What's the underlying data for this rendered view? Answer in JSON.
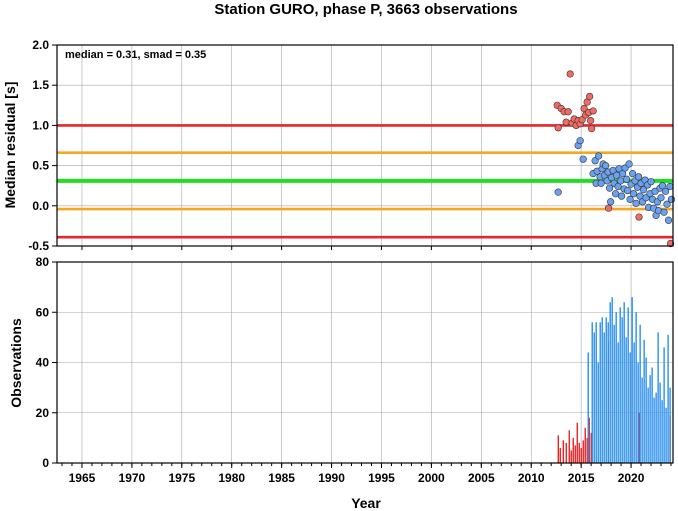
{
  "chart_data": [
    {
      "type": "scatter",
      "title": "Station GURO, phase P, 3663 observations",
      "ylabel": "Median residual [s]",
      "annotation": "median = 0.31, smad = 0.35",
      "xlim": [
        1962.5,
        2024.2
      ],
      "ylim": [
        -0.5,
        2.0
      ],
      "y_ticks": [
        "2.0",
        "1.5",
        "1.0",
        "0.5",
        "0.0",
        "-0.5"
      ],
      "y_tick_values": [
        2.0,
        1.5,
        1.0,
        0.5,
        0.0,
        -0.5
      ],
      "grid": true,
      "reference_lines": [
        {
          "y": 1.0,
          "color": "#e8262a"
        },
        {
          "y": 0.66,
          "color": "#f5a623"
        },
        {
          "y": 0.31,
          "color": "#22dd22"
        },
        {
          "y": -0.04,
          "color": "#f5a623"
        },
        {
          "y": -0.39,
          "color": "#e8262a"
        }
      ],
      "series": [
        {
          "color": "#f26a60",
          "points": [
            [
              2012.6,
              1.25
            ],
            [
              2012.7,
              0.97
            ],
            [
              2013.0,
              1.21
            ],
            [
              2013.3,
              1.17
            ],
            [
              2013.5,
              1.04
            ],
            [
              2013.7,
              1.17
            ],
            [
              2013.9,
              1.64
            ],
            [
              2014.1,
              1.03
            ],
            [
              2014.3,
              1.08
            ],
            [
              2014.5,
              1.0
            ],
            [
              2014.7,
              1.06
            ],
            [
              2014.9,
              1.02
            ],
            [
              2015.1,
              1.07
            ],
            [
              2015.3,
              1.21
            ],
            [
              2015.45,
              1.13
            ],
            [
              2015.6,
              1.29
            ],
            [
              2015.75,
              1.16
            ],
            [
              2015.85,
              1.36
            ],
            [
              2015.95,
              1.06
            ],
            [
              2016.05,
              0.96
            ],
            [
              2016.2,
              1.18
            ],
            [
              2017.75,
              -0.03
            ],
            [
              2020.8,
              -0.14
            ],
            [
              2023.95,
              -0.47
            ]
          ]
        },
        {
          "color": "#6aa2f2",
          "points": [
            [
              2012.7,
              0.17
            ],
            [
              2014.7,
              0.75
            ],
            [
              2014.9,
              0.81
            ],
            [
              2015.2,
              0.58
            ],
            [
              2016.2,
              0.4
            ],
            [
              2016.4,
              0.56
            ],
            [
              2016.5,
              0.28
            ],
            [
              2016.6,
              0.43
            ],
            [
              2016.75,
              0.62
            ],
            [
              2016.9,
              0.36
            ],
            [
              2017.0,
              0.28
            ],
            [
              2017.1,
              0.46
            ],
            [
              2017.2,
              0.52
            ],
            [
              2017.35,
              0.38
            ],
            [
              2017.45,
              0.5
            ],
            [
              2017.6,
              0.31
            ],
            [
              2017.7,
              0.42
            ],
            [
              2017.85,
              0.22
            ],
            [
              2017.95,
              0.05
            ],
            [
              2018.05,
              0.35
            ],
            [
              2018.2,
              0.44
            ],
            [
              2018.3,
              0.28
            ],
            [
              2018.45,
              0.15
            ],
            [
              2018.55,
              0.38
            ],
            [
              2018.7,
              0.24
            ],
            [
              2018.8,
              0.46
            ],
            [
              2018.95,
              0.31
            ],
            [
              2019.05,
              0.12
            ],
            [
              2019.15,
              0.4
            ],
            [
              2019.3,
              0.21
            ],
            [
              2019.4,
              0.47
            ],
            [
              2019.55,
              0.33
            ],
            [
              2019.65,
              0.19
            ],
            [
              2019.8,
              0.52
            ],
            [
              2019.9,
              0.08
            ],
            [
              2020.0,
              0.27
            ],
            [
              2020.15,
              0.4
            ],
            [
              2020.25,
              0.15
            ],
            [
              2020.4,
              0.31
            ],
            [
              2020.5,
              0.03
            ],
            [
              2020.65,
              0.23
            ],
            [
              2020.75,
              0.36
            ],
            [
              2020.9,
              0.12
            ],
            [
              2021.0,
              0.28
            ],
            [
              2021.15,
              0.05
            ],
            [
              2021.25,
              0.2
            ],
            [
              2021.4,
              0.32
            ],
            [
              2021.5,
              0.1
            ],
            [
              2021.65,
              0.26
            ],
            [
              2021.75,
              -0.02
            ],
            [
              2021.9,
              0.15
            ],
            [
              2022.0,
              0.3
            ],
            [
              2022.15,
              0.08
            ],
            [
              2022.25,
              -0.03
            ],
            [
              2022.4,
              0.18
            ],
            [
              2022.5,
              -0.12
            ],
            [
              2022.65,
              0.05
            ],
            [
              2022.75,
              -0.06
            ],
            [
              2022.9,
              0.22
            ],
            [
              2023.0,
              0.1
            ],
            [
              2023.15,
              0.25
            ],
            [
              2023.3,
              -0.08
            ],
            [
              2023.45,
              0.18
            ],
            [
              2023.6,
              0.02
            ],
            [
              2023.75,
              -0.18
            ],
            [
              2023.9,
              0.24
            ],
            [
              2024.05,
              0.08
            ]
          ]
        }
      ]
    },
    {
      "type": "bar",
      "xlabel": "Year",
      "ylabel": "Observations",
      "xlim": [
        1962.5,
        2024.2
      ],
      "ylim": [
        0,
        80
      ],
      "x_ticks": [
        "1965",
        "1970",
        "1975",
        "1980",
        "1985",
        "1990",
        "1995",
        "2000",
        "2005",
        "2010",
        "2015",
        "2020"
      ],
      "x_tick_values": [
        1965,
        1970,
        1975,
        1980,
        1985,
        1990,
        1995,
        2000,
        2005,
        2010,
        2015,
        2020
      ],
      "y_ticks": [
        "80",
        "60",
        "40",
        "20",
        "0"
      ],
      "y_tick_values": [
        80,
        60,
        40,
        20,
        0
      ],
      "grid": true,
      "series": [
        {
          "color": "#ee2222",
          "bars": [
            [
              2012.7,
              11
            ],
            [
              2012.9,
              6
            ],
            [
              2013.2,
              9
            ],
            [
              2013.5,
              8
            ],
            [
              2013.8,
              13
            ],
            [
              2014.0,
              5
            ],
            [
              2014.2,
              10
            ],
            [
              2014.4,
              7
            ],
            [
              2014.6,
              16
            ],
            [
              2014.8,
              8
            ],
            [
              2015.0,
              6
            ],
            [
              2015.2,
              9
            ],
            [
              2015.4,
              14
            ],
            [
              2015.6,
              10
            ],
            [
              2015.8,
              18
            ],
            [
              2016.0,
              12
            ],
            [
              2017.7,
              48
            ],
            [
              2020.8,
              20
            ],
            [
              2023.9,
              19
            ]
          ]
        },
        {
          "color": "#2b90f0",
          "bars": [
            [
              2015.7,
              44
            ],
            [
              2016.1,
              56
            ],
            [
              2016.3,
              52
            ],
            [
              2016.5,
              56
            ],
            [
              2016.7,
              40
            ],
            [
              2016.9,
              56
            ],
            [
              2017.1,
              58
            ],
            [
              2017.3,
              52
            ],
            [
              2017.5,
              58
            ],
            [
              2017.7,
              56
            ],
            [
              2017.9,
              64
            ],
            [
              2018.1,
              66
            ],
            [
              2018.3,
              55
            ],
            [
              2018.5,
              60
            ],
            [
              2018.7,
              48
            ],
            [
              2018.9,
              62
            ],
            [
              2019.1,
              58
            ],
            [
              2019.3,
              64
            ],
            [
              2019.5,
              50
            ],
            [
              2019.7,
              62
            ],
            [
              2019.9,
              44
            ],
            [
              2020.1,
              66
            ],
            [
              2020.3,
              48
            ],
            [
              2020.5,
              60
            ],
            [
              2020.7,
              40
            ],
            [
              2020.9,
              55
            ],
            [
              2021.1,
              34
            ],
            [
              2021.3,
              49
            ],
            [
              2021.5,
              42
            ],
            [
              2021.7,
              30
            ],
            [
              2021.9,
              35
            ],
            [
              2022.1,
              38
            ],
            [
              2022.3,
              26
            ],
            [
              2022.5,
              28
            ],
            [
              2022.7,
              52
            ],
            [
              2022.9,
              32
            ],
            [
              2023.1,
              25
            ],
            [
              2023.3,
              46
            ],
            [
              2023.5,
              22
            ],
            [
              2023.7,
              51
            ],
            [
              2023.9,
              30
            ],
            [
              2024.1,
              24
            ]
          ]
        }
      ]
    }
  ]
}
